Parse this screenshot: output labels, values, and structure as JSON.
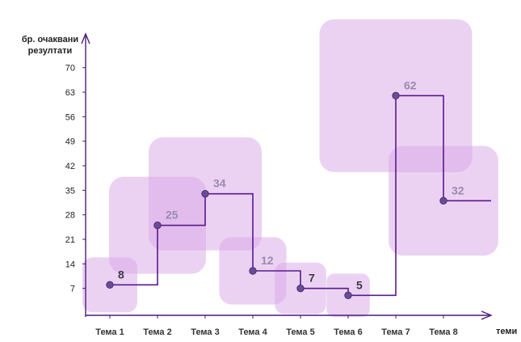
{
  "chart_data": {
    "type": "step-line with bubbles",
    "ylabel": "бр. очаквани резултати",
    "xlabel": "теми",
    "categories": [
      "Тема 1",
      "Тема 2",
      "Тема 3",
      "Тема 4",
      "Тема 5",
      "Тема 6",
      "Тема 7",
      "Тема 8"
    ],
    "values": [
      8,
      25,
      34,
      12,
      7,
      5,
      62,
      32
    ],
    "data_labels": [
      "8",
      "25",
      "34",
      "12",
      "7",
      "5",
      "62",
      "32"
    ],
    "yticks": [
      "7",
      "14",
      "21",
      "28",
      "35",
      "42",
      "49",
      "56",
      "63",
      "70"
    ],
    "ylim": [
      0,
      70
    ],
    "grid": false,
    "legend": "none",
    "colors": {
      "bubble": "#d7a6e6",
      "line": "#5a1a8c",
      "marker": "#6b4b96",
      "axis": "#4b1c7a",
      "label_light": "#9a8ab0",
      "label_dark": "#3a3a4a"
    }
  }
}
